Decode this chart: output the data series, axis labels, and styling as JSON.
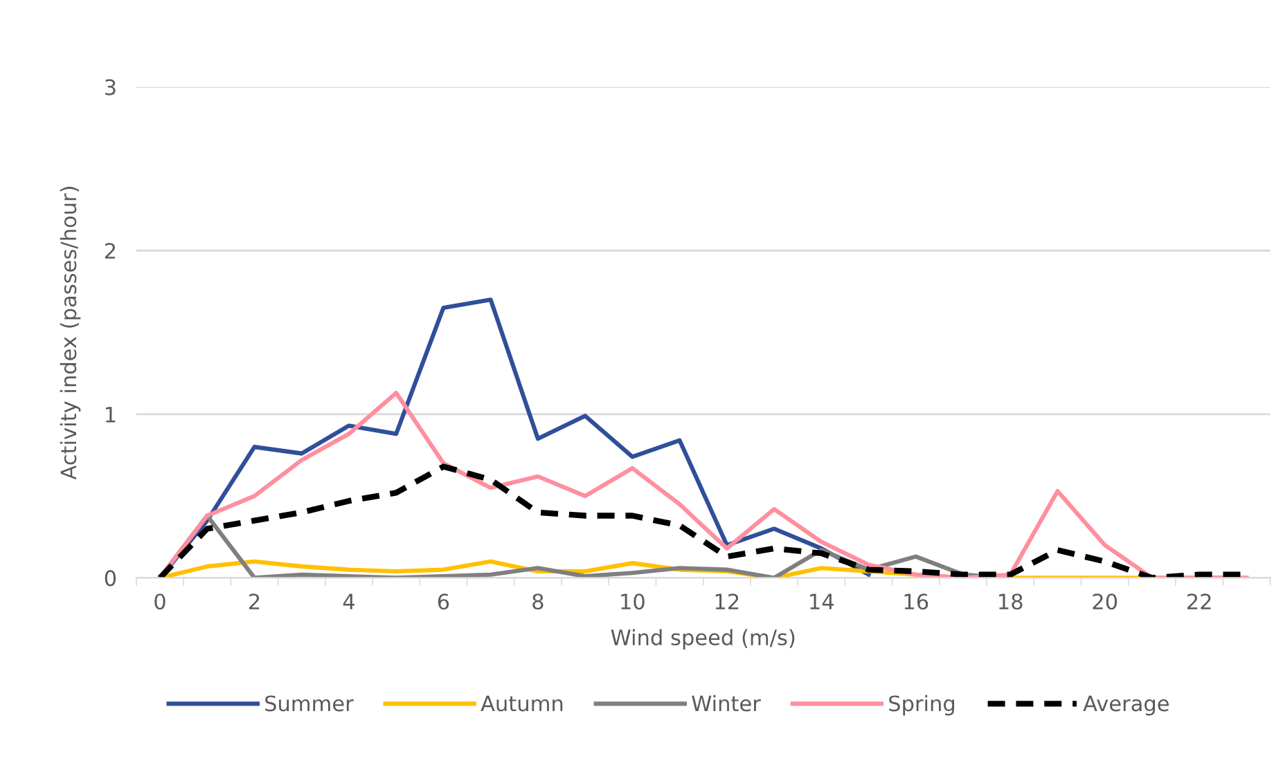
{
  "chart_data": {
    "type": "line",
    "xlabel": "Wind speed (m/s)",
    "ylabel": "Activity index (passes/hour)",
    "categories": [
      "0",
      null,
      "2",
      null,
      "4",
      null,
      "6",
      null,
      "8",
      null,
      "10",
      null,
      "12",
      null,
      "14",
      null,
      "16",
      null,
      "18",
      null,
      "20",
      null,
      "22",
      null
    ],
    "series": [
      {
        "name": "Summer",
        "color": "#2f4f9a",
        "values": [
          0,
          0.35,
          0.8,
          0.76,
          0.93,
          0.88,
          1.65,
          1.7,
          0.85,
          0.99,
          0.74,
          0.84,
          0.2,
          0.3,
          0.18,
          0.02,
          null,
          null,
          null,
          null,
          null,
          null,
          null,
          null
        ]
      },
      {
        "name": "Autumn",
        "color": "#ffc000",
        "values": [
          0,
          0.07,
          0.1,
          0.07,
          0.05,
          0.04,
          0.05,
          0.1,
          0.04,
          0.04,
          0.09,
          0.05,
          0.04,
          0,
          0.06,
          0.04,
          0.02,
          0,
          0,
          0,
          0,
          0,
          0,
          0
        ]
      },
      {
        "name": "Winter",
        "color": "#7f7f7f",
        "values": [
          0,
          0.38,
          0,
          0.02,
          0.01,
          0,
          0.01,
          0.02,
          0.06,
          0.01,
          0.03,
          0.06,
          0.05,
          0,
          0.17,
          0.05,
          0.13,
          0.02,
          0,
          null,
          null,
          null,
          null,
          null
        ]
      },
      {
        "name": "Spring",
        "color": "#ff8f9f",
        "values": [
          0,
          0.38,
          0.5,
          0.72,
          0.88,
          1.13,
          0.7,
          0.55,
          0.62,
          0.5,
          0.67,
          0.45,
          0.18,
          0.42,
          0.22,
          0.08,
          0.02,
          0,
          0.02,
          0.53,
          0.2,
          0,
          0,
          0
        ]
      },
      {
        "name": "Average",
        "color": "#000000",
        "line_style": "dashed",
        "values": [
          0,
          0.3,
          0.35,
          0.4,
          0.47,
          0.52,
          0.68,
          0.6,
          0.4,
          0.38,
          0.38,
          0.32,
          0.13,
          0.18,
          0.15,
          0.05,
          0.04,
          0.02,
          0.02,
          0.17,
          0.1,
          0,
          0.02,
          0.02
        ]
      }
    ],
    "ylim": [
      0,
      3
    ],
    "yticks": [
      0,
      1,
      2,
      3
    ],
    "grid": "y",
    "legend": "bottom",
    "marker": "none"
  }
}
